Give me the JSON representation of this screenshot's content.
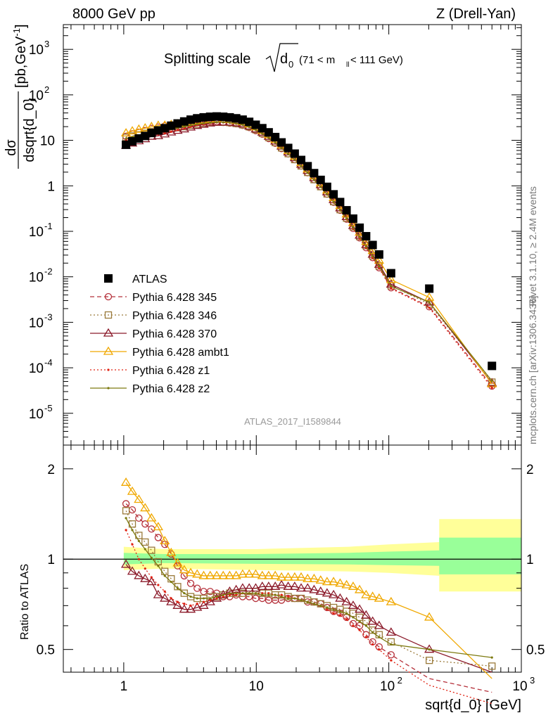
{
  "header": {
    "left": "8000 GeV pp",
    "right": "Z (Drell-Yan)"
  },
  "side": {
    "rivet": "Rivet 3.1.10, ≥ 2.4M events",
    "mcplots": "mcplots.cern.ch [arXiv:1306.3436]"
  },
  "title": {
    "main": "Splitting scale",
    "sub": "0",
    "range": "(71 < m",
    "range_sub": "ll",
    "range_end": " < 111 GeV)"
  },
  "watermark": "ATLAS_2017_I1589844",
  "ylabel_top": {
    "num": "dσ",
    "den": "dsqrt{d_0}",
    "unit": "[pb,GeV",
    "unit_sup": "-1",
    "unit_end": "]"
  },
  "ylabel_bottom": "Ratio to ATLAS",
  "xlabel": "sqrt{d_0} [GeV]",
  "colors": {
    "atlas": "#000000",
    "p345": "#b5303a",
    "p346": "#9a7a3a",
    "p370": "#8b1a2a",
    "ambt1": "#f0a800",
    "z1": "#e02010",
    "z2": "#7d7a10",
    "band_inner": "#99ff99",
    "band_outer": "#ffff99"
  },
  "chart_data": [
    {
      "type": "scatter",
      "x_scale": "log",
      "y_scale": "log",
      "xlim": [
        0.35,
        1000
      ],
      "ylim": [
        2e-06,
        3500
      ],
      "x_ticks": [
        "1",
        "10",
        "10^2",
        "10^3"
      ],
      "y_ticks": [
        "10^-5",
        "10^-4",
        "10^-3",
        "10^-2",
        "10^-1",
        "1",
        "10",
        "10^2",
        "10^3"
      ],
      "x": [
        1.04,
        1.16,
        1.3,
        1.45,
        1.62,
        1.82,
        2.04,
        2.28,
        2.55,
        2.86,
        3.2,
        3.58,
        4.01,
        4.49,
        5.03,
        5.63,
        6.3,
        7.05,
        7.89,
        8.84,
        9.9,
        11.1,
        12.4,
        13.9,
        15.5,
        17.4,
        19.5,
        21.8,
        24.4,
        27.3,
        30.6,
        34.2,
        38.3,
        42.9,
        48.0,
        53.8,
        60.2,
        67.4,
        75.5,
        84.5,
        104,
        202,
        600
      ],
      "series": [
        {
          "name": "ATLAS",
          "marker": "square",
          "values": [
            8.0,
            9.5,
            11.0,
            12.5,
            14.5,
            16.5,
            18.5,
            21.0,
            23.5,
            26.0,
            28.5,
            30.5,
            32.0,
            33.0,
            33.5,
            33.0,
            32.0,
            30.5,
            28.5,
            25.5,
            22.0,
            18.5,
            15.0,
            11.8,
            9.0,
            6.8,
            5.1,
            3.7,
            2.7,
            1.9,
            1.35,
            0.95,
            0.65,
            0.44,
            0.29,
            0.19,
            0.12,
            0.078,
            0.05,
            0.031,
            0.012,
            0.0055,
            0.00011
          ]
        },
        {
          "name": "Pythia 6.428 345",
          "marker": "open-circle",
          "line": "dashed",
          "ratio": [
            1.53,
            1.46,
            1.37,
            1.31,
            1.26,
            1.18,
            1.12,
            1.04,
            0.95,
            0.88,
            0.83,
            0.8,
            0.78,
            0.78,
            0.77,
            0.75,
            0.75,
            0.76,
            0.75,
            0.75,
            0.74,
            0.74,
            0.73,
            0.73,
            0.73,
            0.74,
            0.74,
            0.74,
            0.72,
            0.72,
            0.71,
            0.69,
            0.67,
            0.66,
            0.64,
            0.61,
            0.6,
            0.56,
            0.53,
            0.51,
            0.48,
            0.4,
            0.36
          ]
        },
        {
          "name": "Pythia 6.428 346",
          "marker": "open-square",
          "line": "dotted",
          "ratio": [
            1.45,
            1.31,
            1.2,
            1.14,
            1.07,
            0.98,
            0.91,
            0.86,
            0.81,
            0.77,
            0.75,
            0.74,
            0.74,
            0.75,
            0.75,
            0.76,
            0.77,
            0.77,
            0.77,
            0.78,
            0.78,
            0.77,
            0.77,
            0.76,
            0.76,
            0.75,
            0.74,
            0.74,
            0.73,
            0.72,
            0.71,
            0.7,
            0.69,
            0.68,
            0.67,
            0.66,
            0.64,
            0.62,
            0.58,
            0.56,
            0.53,
            0.46,
            0.44
          ]
        },
        {
          "name": "Pythia 6.428 370",
          "marker": "open-triangle",
          "line": "solid",
          "ratio": [
            0.96,
            0.91,
            0.88,
            0.86,
            0.84,
            0.76,
            0.74,
            0.72,
            0.7,
            0.68,
            0.68,
            0.69,
            0.7,
            0.72,
            0.74,
            0.76,
            0.78,
            0.79,
            0.8,
            0.8,
            0.8,
            0.81,
            0.81,
            0.81,
            0.82,
            0.81,
            0.81,
            0.8,
            0.8,
            0.79,
            0.78,
            0.77,
            0.76,
            0.74,
            0.72,
            0.7,
            0.68,
            0.65,
            0.62,
            0.6,
            0.57,
            0.5,
            0.42
          ]
        },
        {
          "name": "Pythia 6.428 ambt1",
          "marker": "open-triangle",
          "line": "solid",
          "ratio": [
            1.8,
            1.68,
            1.58,
            1.48,
            1.37,
            1.28,
            1.15,
            1.05,
            0.97,
            0.92,
            0.9,
            0.89,
            0.88,
            0.88,
            0.88,
            0.88,
            0.88,
            0.88,
            0.89,
            0.89,
            0.89,
            0.88,
            0.88,
            0.88,
            0.87,
            0.87,
            0.87,
            0.87,
            0.86,
            0.86,
            0.85,
            0.84,
            0.84,
            0.83,
            0.82,
            0.81,
            0.79,
            0.76,
            0.75,
            0.74,
            0.72,
            0.64,
            0.4
          ]
        },
        {
          "name": "Pythia 6.428 z1",
          "marker": "dot",
          "line": "dotted",
          "ratio": [
            1.25,
            1.12,
            1.0,
            0.93,
            0.87,
            0.82,
            0.78,
            0.74,
            0.72,
            0.71,
            0.7,
            0.71,
            0.72,
            0.73,
            0.74,
            0.75,
            0.76,
            0.76,
            0.77,
            0.77,
            0.77,
            0.77,
            0.77,
            0.76,
            0.76,
            0.75,
            0.74,
            0.73,
            0.72,
            0.71,
            0.7,
            0.68,
            0.66,
            0.65,
            0.63,
            0.6,
            0.58,
            0.55,
            0.52,
            0.5,
            0.46,
            0.38,
            0.33
          ]
        },
        {
          "name": "Pythia 6.428 z2",
          "marker": "dot",
          "line": "solid",
          "ratio": [
            1.37,
            1.25,
            1.15,
            1.08,
            1.01,
            0.95,
            0.88,
            0.84,
            0.8,
            0.77,
            0.75,
            0.74,
            0.74,
            0.74,
            0.75,
            0.76,
            0.77,
            0.77,
            0.77,
            0.77,
            0.77,
            0.76,
            0.76,
            0.76,
            0.75,
            0.74,
            0.74,
            0.73,
            0.72,
            0.71,
            0.7,
            0.69,
            0.68,
            0.67,
            0.66,
            0.64,
            0.62,
            0.6,
            0.57,
            0.55,
            0.52,
            0.5,
            0.47
          ]
        }
      ]
    },
    {
      "type": "line",
      "x_scale": "log",
      "y_scale": "log",
      "xlim": [
        0.35,
        1000
      ],
      "ylim": [
        0.42,
        2.4
      ],
      "y_ticks": [
        "0.5",
        "1",
        "2"
      ],
      "reference_line": 1,
      "uncertainty_band": {
        "inner": [
          [
            1.0,
            0.96,
            1.05
          ],
          [
            2.0,
            0.97,
            1.04
          ],
          [
            10,
            0.965,
            1.04
          ],
          [
            50,
            0.96,
            1.05
          ],
          [
            100,
            0.955,
            1.06
          ],
          [
            240,
            0.95,
            1.07
          ],
          [
            240.01,
            0.89,
            1.18
          ],
          [
            1000,
            0.89,
            1.18
          ]
        ],
        "outer": [
          [
            1.0,
            0.92,
            1.1
          ],
          [
            2.0,
            0.93,
            1.08
          ],
          [
            10,
            0.92,
            1.08
          ],
          [
            50,
            0.91,
            1.1
          ],
          [
            100,
            0.9,
            1.12
          ],
          [
            240,
            0.88,
            1.14
          ],
          [
            240.01,
            0.78,
            1.36
          ],
          [
            1000,
            0.78,
            1.36
          ]
        ]
      }
    }
  ]
}
